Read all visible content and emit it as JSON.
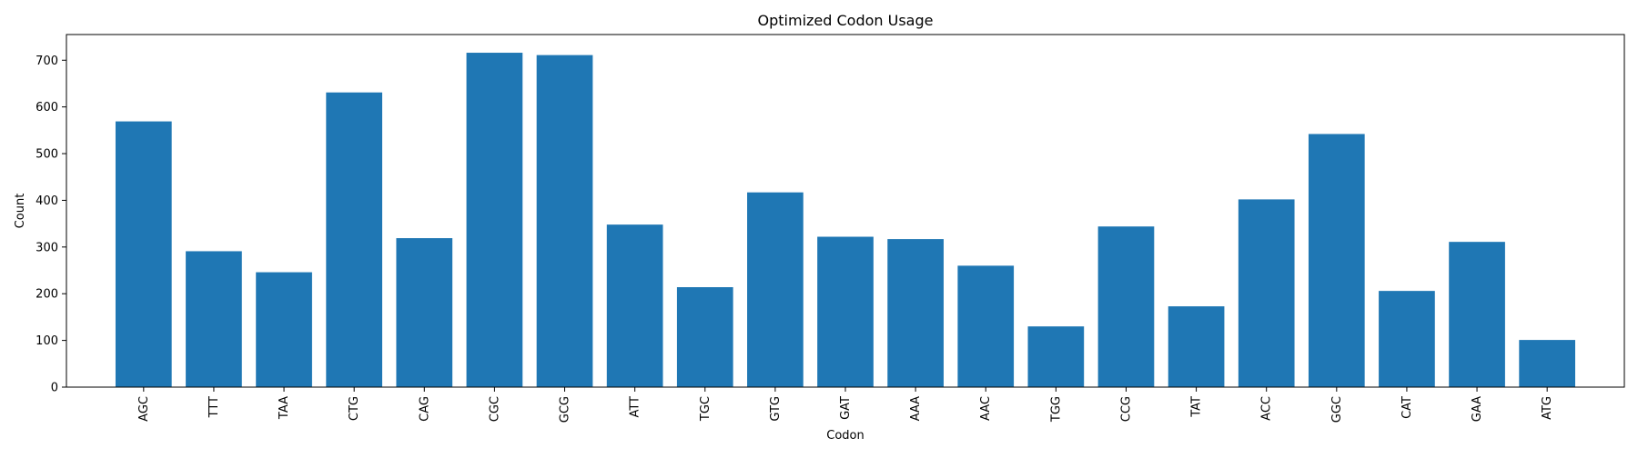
{
  "chart_data": {
    "type": "bar",
    "title": "Optimized Codon Usage",
    "xlabel": "Codon",
    "ylabel": "Count",
    "categories": [
      "AGC",
      "TTT",
      "TAA",
      "CTG",
      "CAG",
      "CGC",
      "GCG",
      "ATT",
      "TGC",
      "GTG",
      "GAT",
      "AAA",
      "AAC",
      "TGG",
      "CCG",
      "TAT",
      "ACC",
      "GGC",
      "CAT",
      "GAA",
      "ATG"
    ],
    "values": [
      569,
      291,
      246,
      631,
      319,
      716,
      711,
      348,
      214,
      417,
      322,
      317,
      260,
      130,
      344,
      173,
      402,
      542,
      206,
      311,
      101
    ],
    "ylim": [
      0,
      755
    ],
    "yticks": [
      0,
      100,
      200,
      300,
      400,
      500,
      600,
      700
    ],
    "bar_color": "#1f77b4",
    "grid": false,
    "legend": "none"
  }
}
